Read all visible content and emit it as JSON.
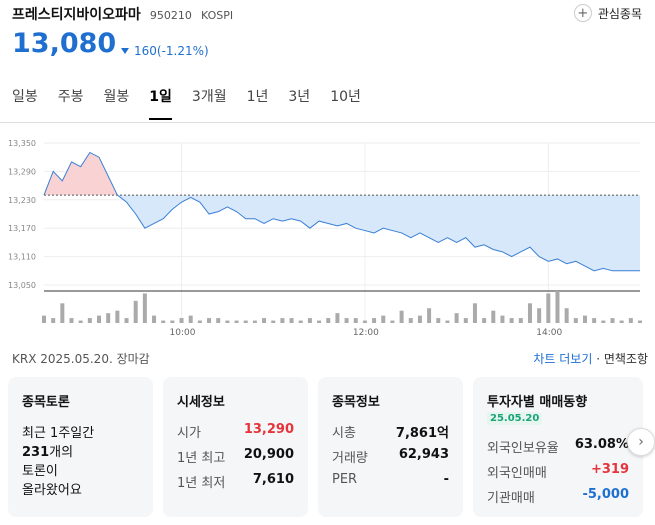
{
  "header": {
    "name": "프레스티지바이오파마",
    "code": "950210",
    "market": "KOSPI",
    "favorite_label": "관심종목"
  },
  "quote": {
    "price": "13,080",
    "change": "160(-1.21%)"
  },
  "tabs": [
    "일봉",
    "주봉",
    "월봉",
    "1일",
    "3개월",
    "1년",
    "3년",
    "10년"
  ],
  "chart_data": {
    "type": "area",
    "y_ticks": [
      "13,350",
      "13,290",
      "13,230",
      "13,170",
      "13,110",
      "13,050"
    ],
    "x_ticks": [
      "10:00",
      "12:00",
      "14:00"
    ],
    "prev_close": 13240,
    "ylim": [
      13050,
      13350
    ],
    "x": [
      0,
      6,
      12,
      18,
      24,
      30,
      36,
      42,
      48,
      54,
      60,
      66,
      72,
      78,
      84,
      90,
      96,
      102,
      108,
      114,
      120,
      126,
      132,
      138,
      144,
      150,
      156,
      162,
      168,
      174,
      180,
      186,
      192,
      198,
      204,
      210,
      216,
      222,
      228,
      234,
      240,
      246,
      252,
      258,
      264,
      270,
      276,
      282,
      288,
      294,
      300,
      306,
      312,
      318,
      324,
      330,
      336,
      342,
      348,
      354,
      360,
      366,
      372,
      378,
      384,
      390
    ],
    "values": [
      13240,
      13290,
      13270,
      13310,
      13300,
      13330,
      13320,
      13280,
      13240,
      13225,
      13200,
      13170,
      13180,
      13190,
      13210,
      13225,
      13235,
      13225,
      13200,
      13205,
      13215,
      13205,
      13190,
      13190,
      13180,
      13190,
      13185,
      13190,
      13185,
      13170,
      13185,
      13180,
      13175,
      13180,
      13170,
      13165,
      13160,
      13170,
      13165,
      13160,
      13150,
      13160,
      13150,
      13140,
      13150,
      13140,
      13150,
      13130,
      13135,
      13125,
      13120,
      13110,
      13120,
      13130,
      13110,
      13100,
      13105,
      13095,
      13100,
      13090,
      13080,
      13085,
      13080,
      13080,
      13080,
      13080
    ],
    "volume": [
      3,
      2,
      8,
      2,
      1,
      2,
      3,
      4,
      5,
      2,
      9,
      12,
      3,
      1,
      1,
      2,
      3,
      1,
      2,
      2,
      1,
      1,
      1,
      1,
      2,
      1,
      2,
      2,
      1,
      2,
      1,
      2,
      4,
      2,
      2,
      1,
      2,
      3,
      1,
      5,
      2,
      3,
      6,
      2,
      1,
      4,
      2,
      8,
      2,
      5,
      3,
      2,
      2,
      8,
      6,
      12,
      13,
      6,
      2,
      3,
      2,
      1,
      2,
      1,
      2,
      1
    ]
  },
  "footline": {
    "left": "KRX  2025.05.20. 장마감",
    "chart_more": "차트 더보기",
    "disclaimer": "면책조항"
  },
  "cards": {
    "discussion": {
      "title": "종목토론",
      "line1": "최근 1주일간",
      "count": "231",
      "count_suffix": "개의",
      "line3": "토론이",
      "line4": "올라왔어요"
    },
    "market": {
      "title": "시세정보",
      "open_k": "시가",
      "open_v": "13,290",
      "high_k": "1년 최고",
      "high_v": "20,900",
      "low_k": "1년 최저",
      "low_v": "7,610"
    },
    "info": {
      "title": "종목정보",
      "cap_k": "시총",
      "cap_v": "7,861억",
      "vol_k": "거래량",
      "vol_v": "62,943",
      "per_k": "PER",
      "per_v": "-"
    },
    "investor": {
      "title": "투자자별 매매동향",
      "date": "25.05.20",
      "f_own_k": "외국인보유율",
      "f_own_v": "63.08%",
      "f_trade_k": "외국인매매",
      "f_trade_v": "+319",
      "inst_k": "기관매매",
      "inst_v": "-5,000"
    }
  },
  "colors": {
    "up": "#e5343b",
    "down": "#1f6fd1"
  }
}
